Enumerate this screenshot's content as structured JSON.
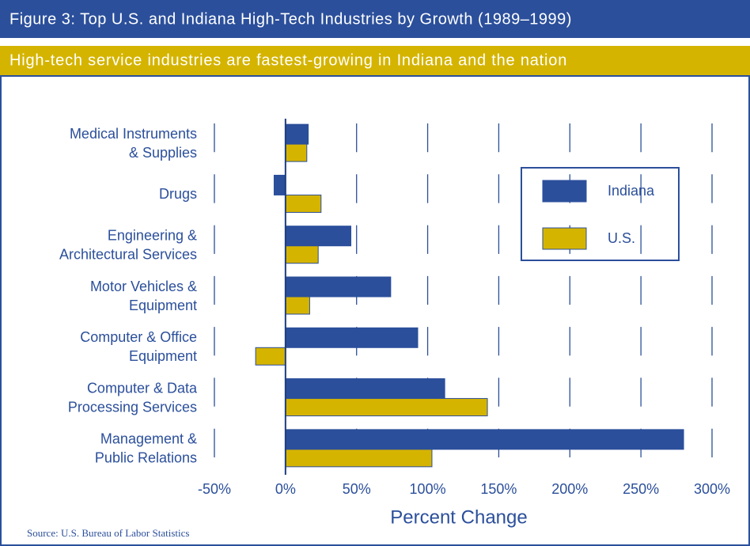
{
  "chart_data": {
    "type": "hbar",
    "title": "Figure 3: Top U.S. and Indiana High-Tech Industries by Growth (1989–1999)",
    "subtitle": "High-tech service industries are fastest-growing in Indiana and the nation",
    "categories": [
      [
        "Medical Instruments",
        "& Supplies"
      ],
      [
        "Drugs"
      ],
      [
        "Engineering &",
        "Architectural Services"
      ],
      [
        "Motor Vehicles &",
        "Equipment"
      ],
      [
        "Computer & Office",
        "Equipment"
      ],
      [
        "Computer & Data",
        "Processing Services"
      ],
      [
        "Management &",
        "Public Relations"
      ]
    ],
    "series": [
      {
        "name": "Indiana",
        "color": "#2b4f9b",
        "values": [
          16,
          -8,
          46,
          74,
          93,
          112,
          280
        ]
      },
      {
        "name": "U.S.",
        "color": "#d5b400",
        "values": [
          15,
          25,
          23,
          17,
          -21,
          142,
          103
        ]
      }
    ],
    "xlim": [
      -50,
      300
    ],
    "xticks": [
      {
        "value": -50,
        "label": "-50%"
      },
      {
        "value": 0,
        "label": "0%"
      },
      {
        "value": 50,
        "label": "50%"
      },
      {
        "value": 100,
        "label": "100%"
      },
      {
        "value": 150,
        "label": "150%"
      },
      {
        "value": 200,
        "label": "200%"
      },
      {
        "value": 250,
        "label": "250%"
      },
      {
        "value": 300,
        "label": "300%"
      }
    ],
    "xlabel": "Percent Change",
    "grid": true,
    "source": "Source: U.S. Bureau of Labor Statistics"
  }
}
